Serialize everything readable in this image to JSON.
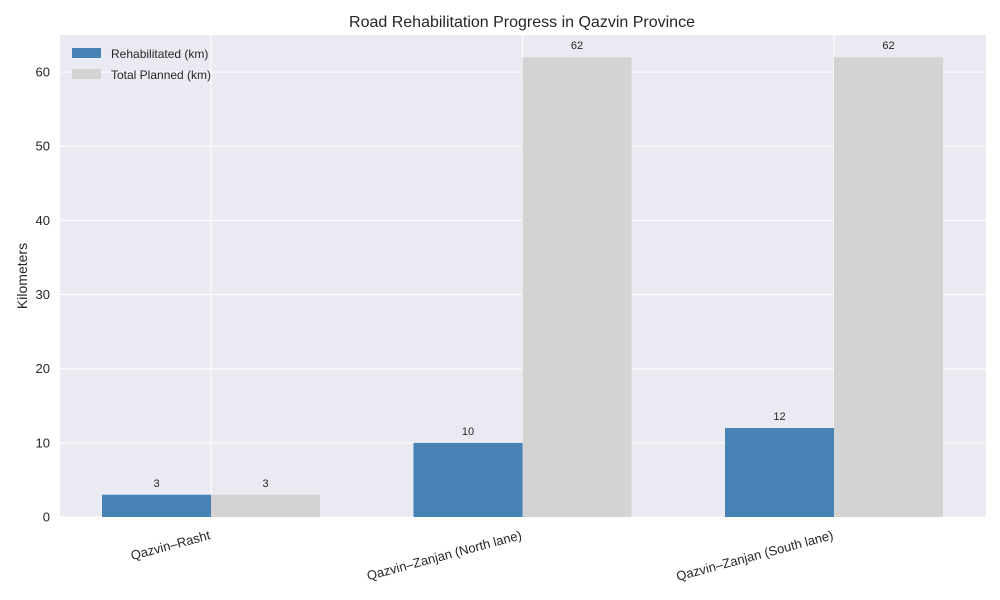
{
  "chart_data": {
    "type": "bar",
    "title": "Road Rehabilitation Progress in Qazvin Province",
    "xlabel": "",
    "ylabel": "Kilometers",
    "categories": [
      "Qazvin–Rasht",
      "Qazvin–Zanjan (North lane)",
      "Qazvin–Zanjan (South lane)"
    ],
    "series": [
      {
        "name": "Rehabilitated (km)",
        "values": [
          3,
          10,
          12
        ],
        "color": "#4682b4"
      },
      {
        "name": "Total Planned (km)",
        "values": [
          3,
          62,
          62
        ],
        "color": "#d3d3d3"
      }
    ],
    "ylim": [
      0,
      65
    ],
    "yticks": [
      0,
      10,
      20,
      30,
      40,
      50,
      60
    ],
    "grid": true,
    "legend": "upper-left",
    "background_color": "#eaeaf2",
    "grid_color": "#ffffff",
    "text_color": "#262626",
    "data_labels": true
  }
}
